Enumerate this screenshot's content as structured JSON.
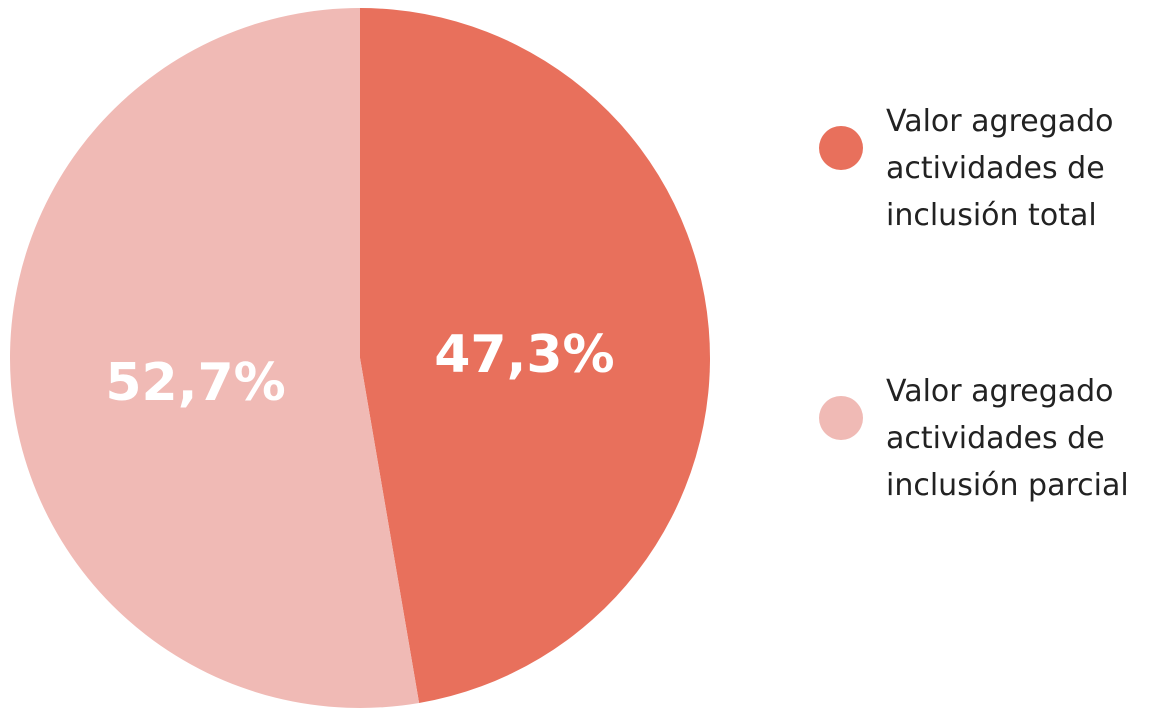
{
  "chart_data": {
    "type": "pie",
    "categories": [
      "Valor agregado actividades de inclusión total",
      "Valor agregado actividades de inclusión parcial"
    ],
    "values": [
      47.3,
      52.7
    ],
    "value_labels": [
      "47,3%",
      "52,7%"
    ],
    "colors": [
      "#e8705c",
      "#f0bab5"
    ],
    "start_angle": 0,
    "direction": "clockwise",
    "legend": "right"
  }
}
